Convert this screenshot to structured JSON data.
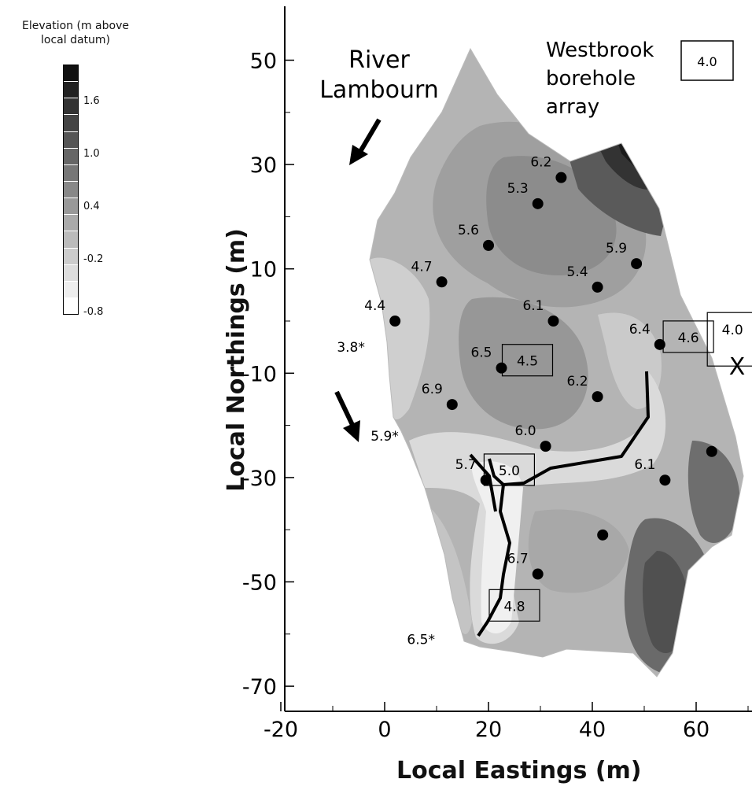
{
  "legend": {
    "title_line1": "Elevation (m above",
    "title_line2": "local datum)",
    "ticks": [
      "1.6",
      "1.0",
      "0.4",
      "-0.2",
      "-0.8"
    ],
    "swatch_colors": [
      "#111111",
      "#222222",
      "#333333",
      "#444444",
      "#555555",
      "#666666",
      "#777777",
      "#888888",
      "#999999",
      "#aaaaaa",
      "#bbbbbb",
      "#cccccc",
      "#dddddd",
      "#eeeeee",
      "#ffffff"
    ]
  },
  "axes": {
    "xlabel": "Local Eastings (m)",
    "ylabel": "Local Northings (m)",
    "xticks": [
      -20,
      0,
      20,
      40,
      60
    ],
    "yticks": [
      50,
      30,
      10,
      -10,
      -30,
      -50,
      -70
    ]
  },
  "annotations": {
    "river_line1": "River",
    "river_line2": "Lambourn",
    "array_line1": "Westbrook",
    "array_line2": "borehole",
    "array_line3": "array",
    "array_box": "4.0",
    "x_marker": "X"
  },
  "chart_data": {
    "type": "contour-map",
    "xlabel": "Local Eastings (m)",
    "ylabel": "Local Northings (m)",
    "xlim": [
      -20,
      73
    ],
    "ylim": [
      -75,
      60
    ],
    "boreholes": [
      {
        "x": 34,
        "y": 27.5,
        "label": "6.2"
      },
      {
        "x": 29.5,
        "y": 22.5,
        "label": "5.3"
      },
      {
        "x": 20,
        "y": 14.5,
        "label": "5.6"
      },
      {
        "x": 48.5,
        "y": 11,
        "label": "5.9"
      },
      {
        "x": 11,
        "y": 7.5,
        "label": "4.7"
      },
      {
        "x": 41,
        "y": 6.5,
        "label": "5.4"
      },
      {
        "x": 32.5,
        "y": 0,
        "label": "6.1"
      },
      {
        "x": 2,
        "y": 0,
        "label": "4.4"
      },
      {
        "x": 53,
        "y": -4.5,
        "label": "6.4"
      },
      {
        "x": 22.5,
        "y": -9,
        "label": "6.5"
      },
      {
        "x": 41,
        "y": -14.5,
        "label": "6.2"
      },
      {
        "x": 13,
        "y": -16,
        "label": "6.9"
      },
      {
        "x": 31,
        "y": -24,
        "label": "6.0"
      },
      {
        "x": 63,
        "y": -25,
        "label": ""
      },
      {
        "x": 19.5,
        "y": -30.5,
        "label": "5.7"
      },
      {
        "x": 54,
        "y": -30.5,
        "label": "6.1"
      },
      {
        "x": 42,
        "y": -41,
        "label": ""
      },
      {
        "x": 29.5,
        "y": -48.5,
        "label": "6.7"
      }
    ],
    "boxed_values": [
      {
        "x": 27.5,
        "y": -7.5,
        "label": "4.5"
      },
      {
        "x": 58.5,
        "y": -3,
        "label": "4.6"
      },
      {
        "x": 24,
        "y": -28.5,
        "label": "5.0"
      },
      {
        "x": 25,
        "y": -54.5,
        "label": "4.8"
      },
      {
        "x": 67,
        "y": -3.5,
        "label": "4.0"
      }
    ],
    "star_labels": [
      {
        "x": -6.5,
        "y": -5,
        "label": "3.8*"
      },
      {
        "x": 0,
        "y": -22,
        "label": "5.9*"
      },
      {
        "x": 7,
        "y": -61,
        "label": "6.5*"
      }
    ]
  }
}
